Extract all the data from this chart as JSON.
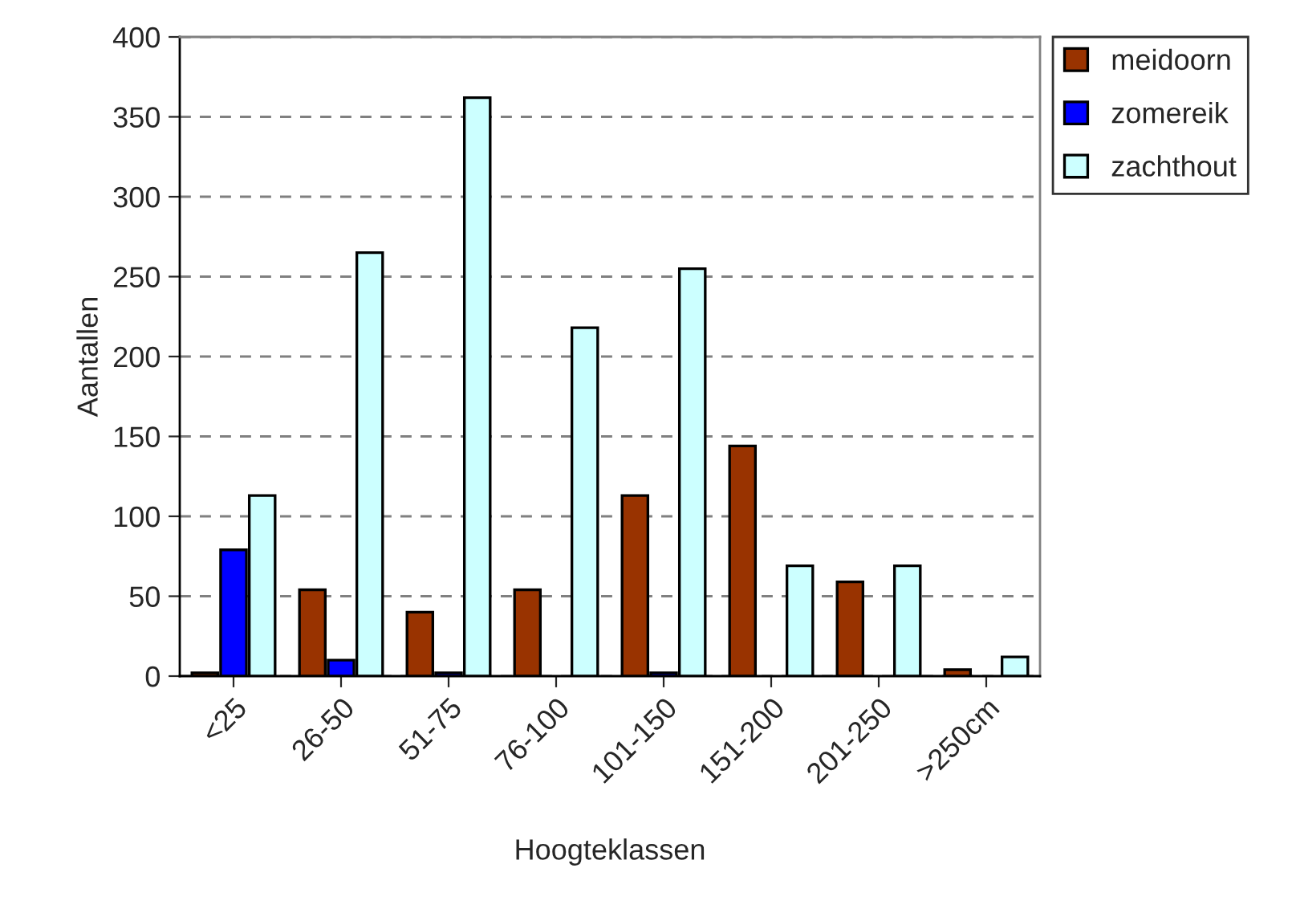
{
  "chart_data": {
    "type": "bar",
    "xlabel": "Hoogteklassen",
    "ylabel": "Aantallen",
    "categories": [
      "<25",
      "26-50",
      "51-75",
      "76-100",
      "101-150",
      "151-200",
      "201-250",
      ">250cm"
    ],
    "series": [
      {
        "name": "meidoorn",
        "color": "#993300",
        "values": [
          2,
          54,
          40,
          54,
          113,
          144,
          59,
          4
        ]
      },
      {
        "name": "zomereik",
        "color": "#0000ff",
        "values": [
          79,
          10,
          2,
          null,
          2,
          null,
          null,
          null
        ]
      },
      {
        "name": "zachthout",
        "color": "#ccffff",
        "values": [
          113,
          265,
          362,
          218,
          255,
          69,
          69,
          12
        ]
      }
    ],
    "ylim": [
      0,
      400
    ],
    "yticks": [
      0,
      50,
      100,
      150,
      200,
      250,
      300,
      350,
      400
    ],
    "grid": "y",
    "legend": "right"
  }
}
